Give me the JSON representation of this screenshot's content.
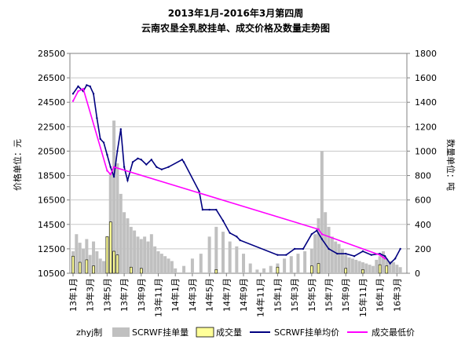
{
  "chart_data": {
    "type": "line",
    "title_line1": "2013年1月-2016年3月第四周",
    "title_line2": "云南农垦全乳胶挂单、成交价格及数量走势图",
    "ylabel_left": "价格单位：元",
    "ylabel_right": "数量单位：吨",
    "ylim_left": [
      10500,
      28500
    ],
    "ylim_right": [
      0,
      1800
    ],
    "yticks_left": [
      "28500",
      "26500",
      "24500",
      "22500",
      "20500",
      "18500",
      "16500",
      "14500",
      "12500",
      "10500"
    ],
    "yticks_right": [
      "1800",
      "1600",
      "1400",
      "1200",
      "1000",
      "800",
      "600",
      "400",
      "200",
      "0"
    ],
    "categories": [
      "13年1月",
      "13年3月",
      "13年5月",
      "13年7月",
      "13年9月",
      "13年11月",
      "14年1月",
      "14年3月",
      "14年5月",
      "14年7月",
      "14年9月",
      "14年11月",
      "15年1月",
      "15年3月",
      "15年5月",
      "15年7月",
      "15年9月",
      "15年11月",
      "16年1月",
      "16年3月"
    ],
    "grid": true,
    "legend_position": "bottom",
    "watermark_text": "zhyj制",
    "colors": {
      "volume": "#c0c0c0",
      "deal_volume": "#ffff99",
      "avg_price": "#000080",
      "min_price": "#ff00ff"
    },
    "series": [
      {
        "name": "SCRWF挂单量",
        "kind": "bar",
        "axis": "right",
        "x": [
          0.0,
          0.2,
          0.4,
          0.6,
          0.8,
          1.0,
          1.2,
          1.4,
          1.6,
          1.8,
          2.0,
          2.2,
          2.4,
          2.6,
          2.8,
          3.0,
          3.2,
          3.4,
          3.6,
          3.8,
          4.0,
          4.2,
          4.4,
          4.6,
          4.8,
          5.0,
          5.2,
          5.4,
          5.6,
          5.8,
          6.0,
          6.5,
          7.0,
          7.5,
          8.0,
          8.4,
          8.8,
          9.2,
          9.6,
          10.0,
          10.4,
          10.8,
          11.2,
          11.6,
          12.0,
          12.4,
          12.8,
          13.2,
          13.6,
          14.0,
          14.2,
          14.4,
          14.6,
          14.8,
          15.0,
          15.2,
          15.4,
          15.6,
          15.8,
          16.0,
          16.2,
          16.4,
          16.6,
          16.8,
          17.0,
          17.2,
          17.4,
          17.6,
          17.8,
          18.0,
          18.2,
          18.4,
          18.6,
          18.8,
          19.0,
          19.2
        ],
        "values": [
          180,
          320,
          250,
          200,
          280,
          150,
          260,
          180,
          120,
          100,
          300,
          820,
          1250,
          900,
          650,
          500,
          450,
          380,
          350,
          300,
          280,
          300,
          260,
          320,
          220,
          180,
          160,
          140,
          120,
          100,
          40,
          60,
          120,
          160,
          300,
          380,
          340,
          260,
          220,
          160,
          80,
          30,
          40,
          60,
          80,
          120,
          140,
          160,
          180,
          200,
          320,
          450,
          1000,
          500,
          380,
          300,
          260,
          240,
          200,
          150,
          130,
          120,
          110,
          100,
          90,
          80,
          70,
          60,
          110,
          140,
          180,
          120,
          100,
          90,
          70,
          50
        ]
      },
      {
        "name": "成交量",
        "kind": "bar",
        "axis": "right",
        "x": [
          0.0,
          0.4,
          0.8,
          1.2,
          2.0,
          2.2,
          2.4,
          2.6,
          3.4,
          4.0,
          8.4,
          12.0,
          14.0,
          14.4,
          16.0,
          17.0,
          18.0,
          18.4
        ],
        "values": [
          140,
          90,
          110,
          60,
          300,
          420,
          180,
          150,
          50,
          40,
          30,
          50,
          60,
          80,
          40,
          30,
          70,
          60
        ]
      },
      {
        "name": "SCRWF挂单均价",
        "kind": "line",
        "axis": "left",
        "x": [
          0.0,
          0.3,
          0.6,
          0.8,
          1.0,
          1.2,
          1.4,
          1.6,
          1.8,
          2.0,
          2.2,
          2.4,
          2.6,
          2.8,
          3.0,
          3.2,
          3.5,
          3.8,
          4.0,
          4.3,
          4.6,
          4.9,
          5.2,
          5.6,
          6.4,
          6.5,
          7.4,
          7.6,
          8.0,
          8.4,
          8.8,
          9.2,
          9.6,
          9.8,
          12.0,
          12.5,
          13.0,
          13.5,
          14.0,
          14.3,
          14.6,
          15.0,
          15.5,
          16.0,
          16.5,
          17.0,
          17.5,
          18.0,
          18.3,
          18.6,
          18.9,
          19.2
        ],
        "values": [
          25200,
          25800,
          25400,
          25900,
          25800,
          25200,
          23200,
          21500,
          21200,
          20200,
          19200,
          18400,
          20500,
          22300,
          19200,
          18100,
          19600,
          19900,
          19800,
          19400,
          19800,
          19200,
          19000,
          19200,
          19800,
          19600,
          17200,
          15700,
          15700,
          15700,
          14800,
          13800,
          13500,
          13200,
          12000,
          12000,
          12500,
          12500,
          13700,
          14000,
          13300,
          12500,
          12100,
          12100,
          11900,
          12300,
          12000,
          12100,
          11900,
          11300,
          11700,
          12500
        ]
      },
      {
        "name": "成交最低价",
        "kind": "line",
        "axis": "left",
        "x": [
          0.0,
          0.3,
          0.6,
          2.0,
          2.2,
          2.4,
          14.4,
          14.6,
          18.0,
          18.3
        ],
        "values": [
          24600,
          25400,
          25600,
          18900,
          18600,
          19200,
          14100,
          13700,
          12000,
          11700
        ]
      }
    ]
  }
}
